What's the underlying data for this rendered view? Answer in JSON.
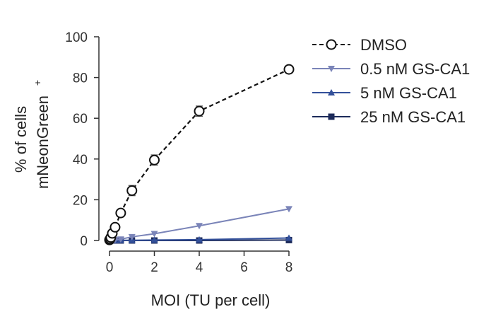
{
  "chart_data": {
    "type": "line",
    "xlabel": "MOI (TU per cell)",
    "ylabel_line1": "% of cells",
    "ylabel_line2": "mNeonGreen",
    "ylabel_superscript": "+",
    "xlim": [
      0,
      8
    ],
    "ylim": [
      0,
      100
    ],
    "x_ticks": [
      0,
      2,
      4,
      6,
      8
    ],
    "y_ticks": [
      0,
      20,
      40,
      60,
      80,
      100
    ],
    "grid": false,
    "legend_position": "top-right",
    "series": [
      {
        "name": "DMSO",
        "marker": "open-circle",
        "line": "dashed",
        "color": "#111111",
        "x": [
          0,
          0.03,
          0.06,
          0.125,
          0.25,
          0.5,
          1,
          2,
          4,
          8
        ],
        "y": [
          0.3,
          0.8,
          1.5,
          3.5,
          6.5,
          13.5,
          24.5,
          39.5,
          63.5,
          84
        ],
        "err": [
          0,
          0,
          0,
          0.5,
          0.8,
          1,
          2.5,
          2.5,
          2.5,
          1.5
        ]
      },
      {
        "name": "0.5 nM GS-CA1",
        "marker": "triangle-down",
        "line": "solid",
        "color": "#7a84b8",
        "x": [
          0,
          0.125,
          0.25,
          0.5,
          1,
          2,
          4,
          8
        ],
        "y": [
          0,
          0.1,
          0.3,
          0.6,
          1.8,
          3.3,
          7.2,
          15.5
        ]
      },
      {
        "name": "5 nM GS-CA1",
        "marker": "triangle-up",
        "line": "solid",
        "color": "#33509a",
        "x": [
          0,
          0.125,
          0.25,
          0.5,
          1,
          2,
          4,
          8
        ],
        "y": [
          0,
          0,
          0,
          0.1,
          0.1,
          0.2,
          0.4,
          1.2
        ]
      },
      {
        "name": "25 nM GS-CA1",
        "marker": "square",
        "line": "solid",
        "color": "#1c2a5a",
        "x": [
          0,
          0.125,
          0.25,
          0.5,
          1,
          2,
          4,
          8
        ],
        "y": [
          0,
          0,
          0,
          0,
          0,
          0,
          0,
          0.2
        ]
      }
    ]
  }
}
